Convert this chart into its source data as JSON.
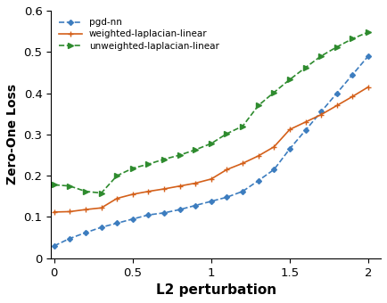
{
  "pgd_nn": {
    "x": [
      0.0,
      0.1,
      0.2,
      0.3,
      0.4,
      0.5,
      0.6,
      0.7,
      0.8,
      0.9,
      1.0,
      1.1,
      1.2,
      1.3,
      1.4,
      1.5,
      1.6,
      1.7,
      1.8,
      1.9,
      2.0
    ],
    "y": [
      0.03,
      0.048,
      0.062,
      0.075,
      0.085,
      0.095,
      0.105,
      0.11,
      0.118,
      0.128,
      0.138,
      0.148,
      0.162,
      0.188,
      0.215,
      0.265,
      0.31,
      0.355,
      0.4,
      0.445,
      0.49
    ],
    "color": "#3d7dbf",
    "linestyle": "--",
    "marker": "D"
  },
  "weighted_laplacian": {
    "x": [
      0.0,
      0.1,
      0.2,
      0.3,
      0.4,
      0.5,
      0.6,
      0.7,
      0.8,
      0.9,
      1.0,
      1.1,
      1.2,
      1.3,
      1.4,
      1.5,
      1.6,
      1.7,
      1.8,
      1.9,
      2.0
    ],
    "y": [
      0.112,
      0.113,
      0.118,
      0.122,
      0.145,
      0.155,
      0.162,
      0.168,
      0.175,
      0.182,
      0.192,
      0.215,
      0.23,
      0.248,
      0.27,
      0.312,
      0.33,
      0.348,
      0.37,
      0.392,
      0.415
    ],
    "color": "#d4601a",
    "linestyle": "-",
    "marker": "+"
  },
  "unweighted_laplacian": {
    "x": [
      0.0,
      0.1,
      0.2,
      0.3,
      0.4,
      0.5,
      0.6,
      0.7,
      0.8,
      0.9,
      1.0,
      1.1,
      1.2,
      1.3,
      1.4,
      1.5,
      1.6,
      1.7,
      1.8,
      1.9,
      2.0
    ],
    "y": [
      0.178,
      0.175,
      0.162,
      0.158,
      0.2,
      0.218,
      0.228,
      0.24,
      0.25,
      0.263,
      0.278,
      0.302,
      0.32,
      0.37,
      0.402,
      0.433,
      0.462,
      0.49,
      0.512,
      0.532,
      0.548
    ],
    "color": "#2e8b2e",
    "linestyle": "--",
    "marker": ">"
  },
  "xlabel": "L2 perturbation",
  "ylabel": "Zero-One Loss",
  "xlim": [
    -0.02,
    2.08
  ],
  "ylim": [
    0,
    0.6
  ],
  "xticks": [
    0,
    0.5,
    1.0,
    1.5,
    2.0
  ],
  "yticks": [
    0,
    0.1,
    0.2,
    0.3,
    0.4,
    0.5,
    0.6
  ],
  "legend_labels": [
    "pgd-nn",
    "weighted-laplacian-linear",
    "unweighted-laplacian-linear"
  ],
  "background_color": "#ffffff"
}
